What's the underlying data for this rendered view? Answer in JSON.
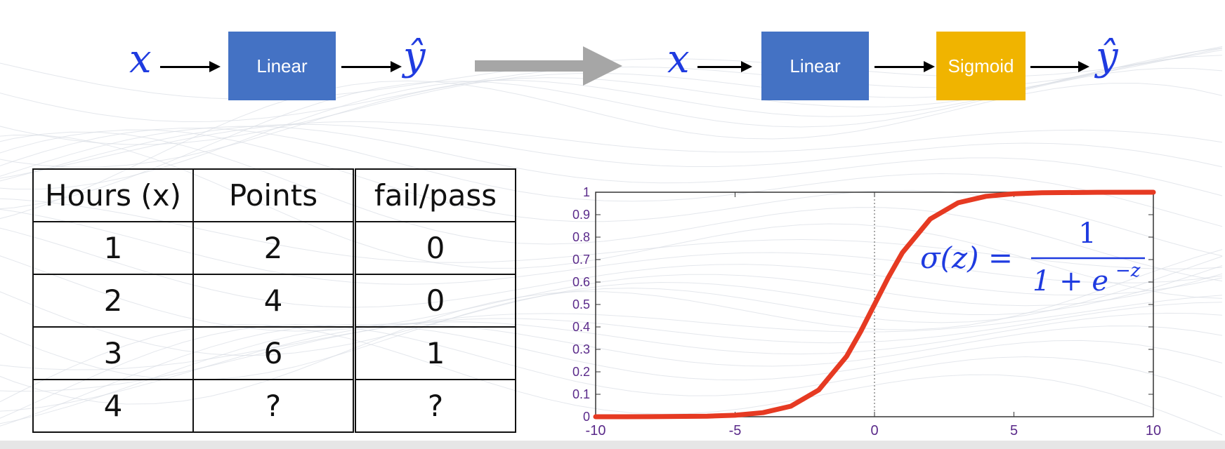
{
  "diagram_left": {
    "input": "x",
    "block": "Linear",
    "output": "ŷ",
    "block_color": "#4472c4"
  },
  "transition_arrow_color": "#a6a6a6",
  "diagram_right": {
    "input": "x",
    "block1": "Linear",
    "block2": "Sigmoid",
    "output": "ŷ",
    "block1_color": "#4472c4",
    "block2_color": "#f0b400"
  },
  "table": {
    "headers": [
      "Hours (x)",
      "Points",
      "fail/pass"
    ],
    "rows": [
      [
        "1",
        "2",
        "0"
      ],
      [
        "2",
        "4",
        "0"
      ],
      [
        "3",
        "6",
        "1"
      ],
      [
        "4",
        "?",
        "?"
      ]
    ]
  },
  "chart_data": {
    "type": "line",
    "series": [
      {
        "x": [
          -10,
          -8,
          -6,
          -5,
          -4,
          -3,
          -2,
          -1,
          -0.5,
          0,
          0.5,
          1,
          2,
          3,
          4,
          5,
          6,
          8,
          10
        ],
        "values": [
          5e-05,
          0.0003,
          0.0025,
          0.0067,
          0.018,
          0.047,
          0.119,
          0.269,
          0.378,
          0.5,
          0.622,
          0.731,
          0.881,
          0.953,
          0.982,
          0.993,
          0.9975,
          0.9997,
          0.99995
        ],
        "color": "#e63a22"
      }
    ],
    "xlim": [
      -10,
      10
    ],
    "ylim": [
      0,
      1
    ],
    "xticks": [
      "-10",
      "-5",
      "0",
      "5",
      "10"
    ],
    "yticks": [
      "0",
      "0.1",
      "0.2",
      "0.3",
      "0.4",
      "0.5",
      "0.6",
      "0.7",
      "0.8",
      "0.9",
      "1"
    ],
    "tick_color": "#5a2a8a",
    "annotation": "σ(z) = 1 / (1 + e^−z)",
    "formula": {
      "lhs": "σ(z) =",
      "numerator": "1",
      "denominator": "1 + e",
      "exponent": "−z"
    }
  }
}
